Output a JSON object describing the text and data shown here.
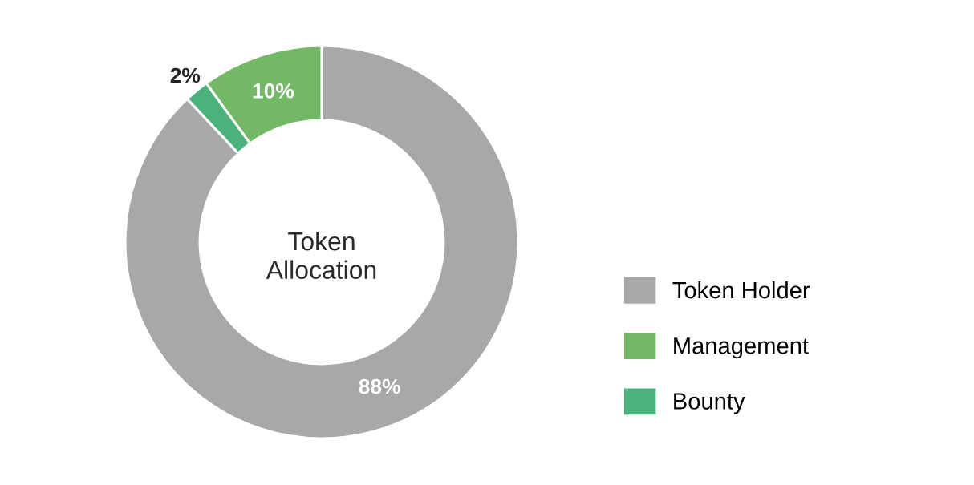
{
  "chart_data": {
    "type": "donut",
    "title": "Token\nAllocation",
    "categories": [
      "Token Holder",
      "Management",
      "Bounty"
    ],
    "values": [
      88,
      10,
      2
    ],
    "colors": [
      "#a7a8aa",
      "#72b865",
      "#4cb27b"
    ],
    "value_labels": [
      "88%",
      "10%",
      "2%"
    ],
    "legend": "right"
  }
}
